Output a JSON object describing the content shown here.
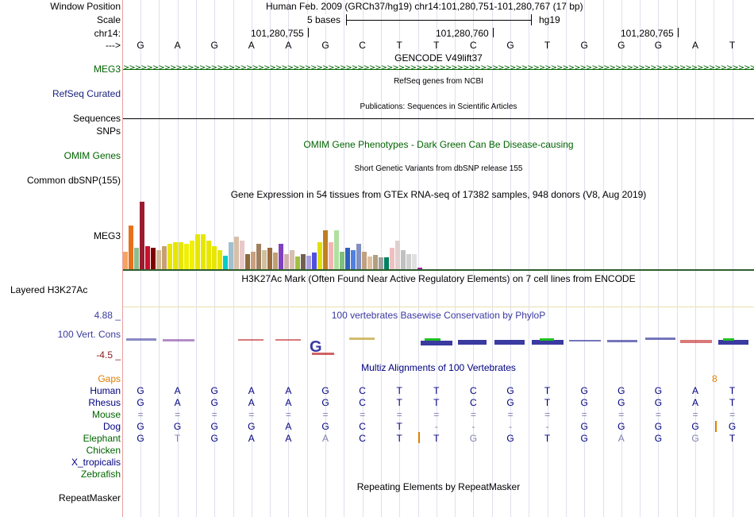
{
  "labels": {
    "window_position": "Window Position",
    "scale": "Scale",
    "chr": "chr14:",
    "arrow": "--->",
    "meg3": "MEG3",
    "refseq": "RefSeq Curated",
    "sequences": "Sequences",
    "snps": "SNPs",
    "omim": "OMIM Genes",
    "dbsnp": "Common dbSNP(155)",
    "meg3_expr": "MEG3",
    "h3k27ac": "Layered H3K27Ac",
    "cons_max": "4.88 _",
    "cons_name": "100 Vert. Cons",
    "cons_min": "-4.5 _",
    "gaps": "Gaps",
    "human": "Human",
    "rhesus": "Rhesus",
    "mouse": "Mouse",
    "dog": "Dog",
    "elephant": "Elephant",
    "chicken": "Chicken",
    "xtrop": "X_tropicalis",
    "zebrafish": "Zebrafish",
    "repeatmasker": "RepeatMasker"
  },
  "header": {
    "position": "Human Feb. 2009 (GRCh37/hg19)   chr14:101,280,751-101,280,767 (17 bp)",
    "scale_text": "5 bases",
    "scale_asm": "hg19",
    "coord1": "101,280,755",
    "coord2": "101,280,760",
    "coord3": "101,280,765"
  },
  "tracks": {
    "gencode": "GENCODE V49lift37",
    "refseq": "RefSeq genes from NCBI",
    "publications": "Publications: Sequences in Scientific Articles",
    "omim": "OMIM Gene Phenotypes - Dark Green Can Be Disease-causing",
    "dbsnp": "Short Genetic Variants from dbSNP release 155",
    "gtex": "Gene Expression in 54 tissues from GTEx RNA-seq of 17382 samples, 948 donors (V8, Aug 2019)",
    "h3k27ac": "H3K27Ac Mark (Often Found Near Active Regulatory Elements) on 7 cell lines from ENCODE",
    "phylop": "100 vertebrates Basewise Conservation by PhyloP",
    "multiz": "Multiz Alignments of 100 Vertebrates",
    "repeatmasker": "Repeating Elements by RepeatMasker",
    "gap_count": "8"
  },
  "bases": {
    "reference": [
      "G",
      "A",
      "G",
      "A",
      "A",
      "G",
      "C",
      "T",
      "T",
      "C",
      "G",
      "T",
      "G",
      "G",
      "G",
      "A",
      "T"
    ],
    "human": [
      "G",
      "A",
      "G",
      "A",
      "A",
      "G",
      "C",
      "T",
      "T",
      "C",
      "G",
      "T",
      "G",
      "G",
      "G",
      "A",
      "T"
    ],
    "rhesus": [
      "G",
      "A",
      "G",
      "A",
      "A",
      "G",
      "C",
      "T",
      "T",
      "C",
      "G",
      "T",
      "G",
      "G",
      "G",
      "A",
      "T"
    ],
    "mouse": [
      "=",
      "=",
      "=",
      "=",
      "=",
      "=",
      "=",
      "=",
      "=",
      "=",
      "=",
      "=",
      "=",
      "=",
      "=",
      "=",
      "="
    ],
    "dog": [
      "G",
      "G",
      "G",
      "G",
      "A",
      "G",
      "C",
      "T",
      "-",
      "-",
      "-",
      "-",
      "G",
      "G",
      "G",
      "G",
      "G"
    ],
    "elephant": [
      "G",
      "T",
      "G",
      "A",
      "A",
      "A",
      "C",
      "T",
      "T",
      "G",
      "G",
      "T",
      "G",
      "A",
      "G",
      "G",
      "T"
    ]
  },
  "colors": {
    "species_label": "#000080",
    "green_label": "#006400",
    "gap_orange": "#e08000",
    "cons_blue": "#3a3aa0",
    "cons_red": "#8b1a1a"
  },
  "gtex_values": [
    18,
    45,
    22,
    70,
    24,
    22,
    20,
    24,
    26,
    28,
    28,
    26,
    30,
    36,
    36,
    30,
    24,
    20,
    14,
    28,
    34,
    30,
    16,
    18,
    26,
    20,
    22,
    17,
    26,
    16,
    20,
    13,
    16,
    14,
    17,
    28,
    40,
    28,
    40,
    18,
    22,
    20,
    26,
    18,
    13,
    15,
    12,
    12,
    22,
    30,
    20,
    16,
    16,
    2
  ],
  "gtex_colors": [
    "#f4a460",
    "#e8701a",
    "#8fbc8f",
    "#9b1b30",
    "#c8102e",
    "#800000",
    "#cfb997",
    "#c8a070",
    "#e6e600",
    "#e6e600",
    "#e6e600",
    "#f0f000",
    "#f0f000",
    "#e6e600",
    "#e6e600",
    "#e6e600",
    "#e6e600",
    "#e6e600",
    "#00cccc",
    "#a0c0d0",
    "#d8bfa8",
    "#e8c8c8",
    "#8b6a3a",
    "#c8a080",
    "#a08060",
    "#d0c0a0",
    "#9a6a40",
    "#c0a070",
    "#8040c0",
    "#d0b0b0",
    "#d8bfb0",
    "#a0c040",
    "#706050",
    "#a8a0e0",
    "#5050e0",
    "#e0e000",
    "#c08020",
    "#f4b4b4",
    "#b0e0a0",
    "#7fbf7f",
    "#3060c0",
    "#5080e0",
    "#8090c0",
    "#c0a080",
    "#e0c0a0",
    "#b0a080",
    "#a0a0a0",
    "#008060",
    "#f0c0c0",
    "#e0d0d0",
    "#c0c0c0",
    "#d0d0d0",
    "#e0e0e0",
    "#a020a0"
  ]
}
